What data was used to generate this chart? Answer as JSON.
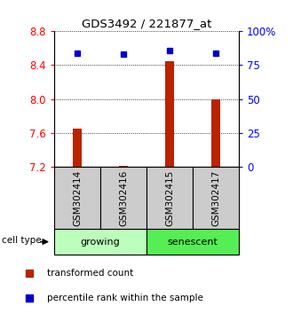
{
  "title": "GDS3492 / 221877_at",
  "samples": [
    "GSM302414",
    "GSM302416",
    "GSM302415",
    "GSM302417"
  ],
  "bar_values": [
    7.65,
    7.21,
    8.45,
    8.0
  ],
  "percentile_values": [
    84,
    83,
    86,
    84
  ],
  "ylim_left": [
    7.2,
    8.8
  ],
  "ylim_right": [
    0,
    100
  ],
  "yticks_left": [
    7.2,
    7.6,
    8.0,
    8.4,
    8.8
  ],
  "yticks_right": [
    0,
    25,
    50,
    75,
    100
  ],
  "ytick_labels_right": [
    "0",
    "25",
    "50",
    "75",
    "100%"
  ],
  "groups": [
    {
      "label": "growing",
      "samples": [
        0,
        1
      ],
      "color": "#bbffbb"
    },
    {
      "label": "senescent",
      "samples": [
        2,
        3
      ],
      "color": "#55ee55"
    }
  ],
  "bar_color": "#bb2200",
  "point_color": "#0000cc",
  "bar_width": 0.18,
  "bg_label": "#cccccc",
  "cell_type_label": "cell type",
  "legend_bar": "transformed count",
  "legend_point": "percentile rank within the sample"
}
